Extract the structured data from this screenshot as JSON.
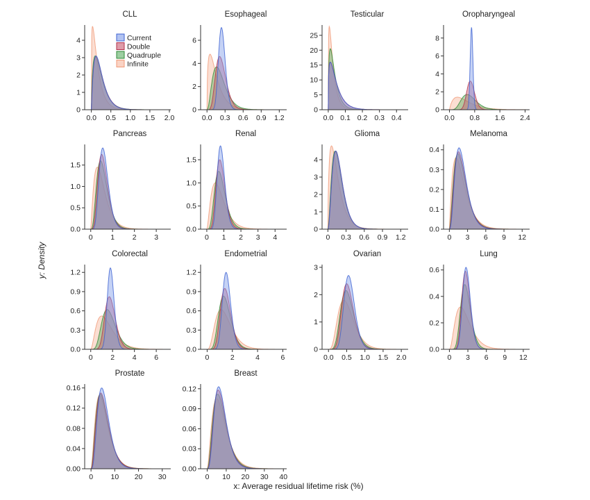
{
  "figure": {
    "ylabel": "y: Density",
    "xlabel": "x: Average residual lifetime risk (%)"
  },
  "legend": {
    "placement": "inside CLL panel, upper-right",
    "entries": [
      {
        "name": "Current",
        "color": "#4a6fd8"
      },
      {
        "name": "Double",
        "color": "#c23b55"
      },
      {
        "name": "Quadruple",
        "color": "#3d9a45"
      },
      {
        "name": "Infinite",
        "color": "#f4a07f"
      }
    ]
  },
  "chart_data": [
    {
      "type": "area",
      "title": "CLL",
      "xlim": [
        -0.1,
        2.0
      ],
      "xticks": [
        "0.0",
        "0.5",
        "1.0",
        "1.5",
        "2.0"
      ],
      "ylim": [
        0,
        4.8
      ],
      "yticks": [
        "0",
        "1",
        "2",
        "3",
        "4"
      ],
      "series": [
        {
          "name": "Current",
          "mode": 0.12,
          "peak": 3.1
        },
        {
          "name": "Double",
          "mode": 0.12,
          "peak": 3.05
        },
        {
          "name": "Quadruple",
          "mode": 0.1,
          "peak": 3.1
        },
        {
          "name": "Infinite",
          "mode": 0.03,
          "peak": 4.8
        }
      ]
    },
    {
      "type": "area",
      "title": "Esophageal",
      "xlim": [
        -0.06,
        1.3
      ],
      "xticks": [
        "0.0",
        "0.3",
        "0.6",
        "0.9",
        "1.2"
      ],
      "ylim": [
        0,
        7.2
      ],
      "yticks": [
        "0",
        "2",
        "4",
        "6"
      ],
      "series": [
        {
          "name": "Current",
          "mode": 0.24,
          "peak": 7.1
        },
        {
          "name": "Double",
          "mode": 0.21,
          "peak": 4.6
        },
        {
          "name": "Quadruple",
          "mode": 0.16,
          "peak": 3.7
        },
        {
          "name": "Infinite",
          "mode": 0.05,
          "peak": 4.8
        }
      ]
    },
    {
      "type": "area",
      "title": "Testicular",
      "xlim": [
        -0.02,
        0.46
      ],
      "xticks": [
        "0.0",
        "0.1",
        "0.2",
        "0.3",
        "0.4"
      ],
      "ylim": [
        0,
        28
      ],
      "yticks": [
        "0",
        "5",
        "10",
        "15",
        "20",
        "25"
      ],
      "series": [
        {
          "name": "Current",
          "mode": 0.012,
          "peak": 16
        },
        {
          "name": "Double",
          "mode": 0.012,
          "peak": 16
        },
        {
          "name": "Quadruple",
          "mode": 0.012,
          "peak": 20.5
        },
        {
          "name": "Infinite",
          "mode": 0.006,
          "peak": 28
        }
      ]
    },
    {
      "type": "area",
      "title": "Oropharyngeal",
      "xlim": [
        -0.1,
        2.5
      ],
      "xticks": [
        "0.0",
        "0.8",
        "1.6",
        "2.4"
      ],
      "ylim": [
        0,
        9.3
      ],
      "yticks": [
        "0",
        "2",
        "4",
        "6",
        "8"
      ],
      "series": [
        {
          "name": "Current",
          "mode": 0.7,
          "peak": 9.2
        },
        {
          "name": "Double",
          "mode": 0.66,
          "peak": 3.2
        },
        {
          "name": "Quadruple",
          "mode": 0.56,
          "peak": 1.7
        },
        {
          "name": "Infinite",
          "mode": 0.25,
          "peak": 1.4
        }
      ]
    },
    {
      "type": "area",
      "title": "Pancreas",
      "xlim": [
        -0.15,
        3.6
      ],
      "xticks": [
        "0",
        "1",
        "2",
        "3"
      ],
      "ylim": [
        0,
        1.95
      ],
      "yticks": [
        "0.0",
        "0.5",
        "1.0",
        "1.5"
      ],
      "series": [
        {
          "name": "Current",
          "mode": 0.55,
          "peak": 1.9
        },
        {
          "name": "Double",
          "mode": 0.5,
          "peak": 1.75
        },
        {
          "name": "Quadruple",
          "mode": 0.45,
          "peak": 1.6
        },
        {
          "name": "Infinite",
          "mode": 0.3,
          "peak": 1.45
        }
      ]
    },
    {
      "type": "area",
      "title": "Renal",
      "xlim": [
        -0.2,
        4.6
      ],
      "xticks": [
        "0",
        "1",
        "2",
        "3",
        "4"
      ],
      "ylim": [
        0,
        1.8
      ],
      "yticks": [
        "0.0",
        "0.5",
        "1.0",
        "1.5"
      ],
      "series": [
        {
          "name": "Current",
          "mode": 0.8,
          "peak": 1.8
        },
        {
          "name": "Double",
          "mode": 0.76,
          "peak": 1.5
        },
        {
          "name": "Quadruple",
          "mode": 0.7,
          "peak": 1.25
        },
        {
          "name": "Infinite",
          "mode": 0.5,
          "peak": 1.0
        }
      ]
    },
    {
      "type": "area",
      "title": "Glioma",
      "xlim": [
        -0.05,
        1.3
      ],
      "xticks": [
        "0",
        "0.3",
        "0.6",
        "0.9",
        "1.2"
      ],
      "ylim": [
        0,
        4.8
      ],
      "yticks": [
        "0",
        "1",
        "2",
        "3",
        "4"
      ],
      "series": [
        {
          "name": "Current",
          "mode": 0.13,
          "peak": 4.5
        },
        {
          "name": "Double",
          "mode": 0.13,
          "peak": 4.5
        },
        {
          "name": "Quadruple",
          "mode": 0.12,
          "peak": 4.5
        },
        {
          "name": "Infinite",
          "mode": 0.06,
          "peak": 4.8
        }
      ]
    },
    {
      "type": "area",
      "title": "Melanoma",
      "xlim": [
        -0.5,
        13
      ],
      "xticks": [
        "0",
        "3",
        "6",
        "9",
        "12"
      ],
      "ylim": [
        0,
        0.42
      ],
      "yticks": [
        "0.0",
        "0.1",
        "0.2",
        "0.3",
        "0.4"
      ],
      "series": [
        {
          "name": "Current",
          "mode": 1.6,
          "peak": 0.41
        },
        {
          "name": "Double",
          "mode": 1.5,
          "peak": 0.39
        },
        {
          "name": "Quadruple",
          "mode": 1.4,
          "peak": 0.38
        },
        {
          "name": "Infinite",
          "mode": 1.1,
          "peak": 0.36
        }
      ]
    },
    {
      "type": "area",
      "title": "Colorectal",
      "xlim": [
        -0.3,
        7.2
      ],
      "xticks": [
        "0",
        "2",
        "4",
        "6"
      ],
      "ylim": [
        0,
        1.3
      ],
      "yticks": [
        "0.0",
        "0.3",
        "0.6",
        "0.9",
        "1.2"
      ],
      "series": [
        {
          "name": "Current",
          "mode": 1.8,
          "peak": 1.27
        },
        {
          "name": "Double",
          "mode": 1.7,
          "peak": 0.82
        },
        {
          "name": "Quadruple",
          "mode": 1.5,
          "peak": 0.62
        },
        {
          "name": "Infinite",
          "mode": 1.0,
          "peak": 0.52
        }
      ]
    },
    {
      "type": "area",
      "title": "Endometrial",
      "xlim": [
        -0.3,
        6.2
      ],
      "xticks": [
        "0",
        "2",
        "4",
        "6"
      ],
      "ylim": [
        0,
        1.3
      ],
      "yticks": [
        "0.0",
        "0.3",
        "0.6",
        "0.9",
        "1.2"
      ],
      "series": [
        {
          "name": "Current",
          "mode": 1.5,
          "peak": 1.2
        },
        {
          "name": "Double",
          "mode": 1.4,
          "peak": 0.95
        },
        {
          "name": "Quadruple",
          "mode": 1.3,
          "peak": 0.83
        },
        {
          "name": "Infinite",
          "mode": 1.1,
          "peak": 0.62
        }
      ]
    },
    {
      "type": "area",
      "title": "Ovarian",
      "xlim": [
        -0.1,
        2.15
      ],
      "xticks": [
        "0.0",
        "0.5",
        "1.0",
        "1.5",
        "2.0"
      ],
      "ylim": [
        0,
        3.05
      ],
      "yticks": [
        "0",
        "1",
        "2",
        "3"
      ],
      "series": [
        {
          "name": "Current",
          "mode": 0.55,
          "peak": 2.7
        },
        {
          "name": "Double",
          "mode": 0.5,
          "peak": 2.4
        },
        {
          "name": "Quadruple",
          "mode": 0.48,
          "peak": 2.15
        },
        {
          "name": "Infinite",
          "mode": 0.42,
          "peak": 1.8
        }
      ]
    },
    {
      "type": "area",
      "title": "Lung",
      "xlim": [
        -0.5,
        12.8
      ],
      "xticks": [
        "0",
        "3",
        "6",
        "9",
        "12"
      ],
      "ylim": [
        0,
        0.63
      ],
      "yticks": [
        "0.0",
        "0.2",
        "0.4",
        "0.6"
      ],
      "series": [
        {
          "name": "Current",
          "mode": 2.7,
          "peak": 0.62
        },
        {
          "name": "Double",
          "mode": 2.6,
          "peak": 0.59
        },
        {
          "name": "Quadruple",
          "mode": 2.5,
          "peak": 0.49
        },
        {
          "name": "Infinite",
          "mode": 1.8,
          "peak": 0.32
        }
      ]
    },
    {
      "type": "area",
      "title": "Prostate",
      "xlim": [
        -1.5,
        33
      ],
      "xticks": [
        "0",
        "10",
        "20",
        "30"
      ],
      "ylim": [
        0,
        0.165
      ],
      "yticks": [
        "0.00",
        "0.04",
        "0.08",
        "0.12",
        "0.16"
      ],
      "series": [
        {
          "name": "Current",
          "mode": 4.5,
          "peak": 0.16
        },
        {
          "name": "Double",
          "mode": 4.1,
          "peak": 0.15
        },
        {
          "name": "Quadruple",
          "mode": 3.9,
          "peak": 0.148
        },
        {
          "name": "Infinite",
          "mode": 3.6,
          "peak": 0.145
        }
      ]
    },
    {
      "type": "area",
      "title": "Breast",
      "xlim": [
        -2,
        41
      ],
      "xticks": [
        "0",
        "10",
        "20",
        "30",
        "40"
      ],
      "ylim": [
        0,
        0.125
      ],
      "yticks": [
        "0.00",
        "0.03",
        "0.06",
        "0.09",
        "0.12"
      ],
      "series": [
        {
          "name": "Current",
          "mode": 6,
          "peak": 0.123
        },
        {
          "name": "Double",
          "mode": 5.8,
          "peak": 0.118
        },
        {
          "name": "Quadruple",
          "mode": 5.5,
          "peak": 0.112
        },
        {
          "name": "Infinite",
          "mode": 5,
          "peak": 0.105
        }
      ]
    }
  ]
}
